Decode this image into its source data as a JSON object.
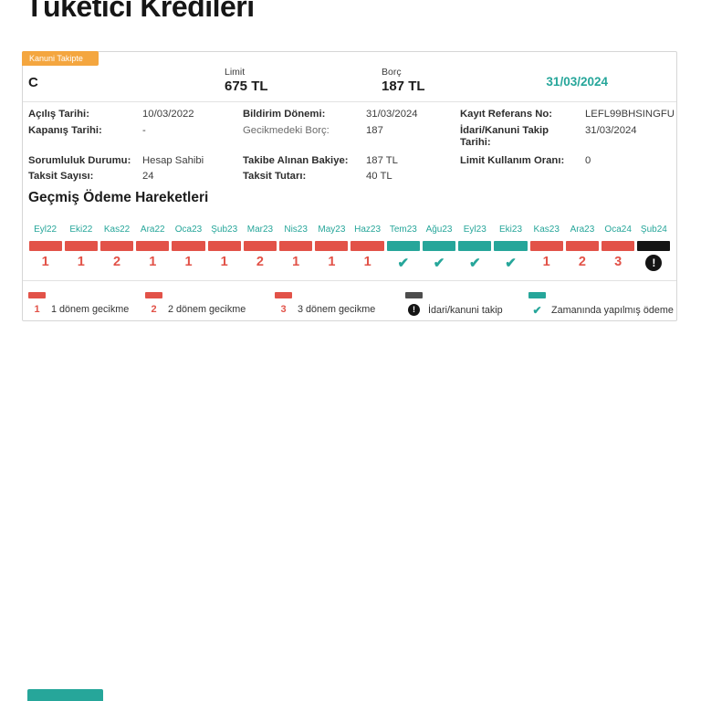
{
  "page": {
    "title": "Tüketici Kredileri"
  },
  "colors": {
    "teal": "#26a69a",
    "red": "#e25248",
    "orange": "#f4a63f",
    "black": "#141414",
    "legend_gray": "#4d4d4d"
  },
  "card": {
    "status_badge": "Kanuni Takipte",
    "account_name": "C",
    "limit_label": "Limit",
    "limit_value": "675 TL",
    "debt_label": "Borç",
    "debt_value": "187 TL",
    "report_date": "31/03/2024"
  },
  "info": {
    "rows": [
      {
        "c1l": "Açılış Tarihi:",
        "c1v": "10/03/2022",
        "c2l": "Bildirim Dönemi:",
        "c2v": "31/03/2024",
        "c3l": "Kayıt Referans No:",
        "c3v": "LEFL99BHSINGFU"
      },
      {
        "c1l": "Kapanış Tarihi:",
        "c1v": "-",
        "c2l": "Gecikmedeki Borç:",
        "c2v": "187",
        "c3l": "İdari/Kanuni Takip Tarihi:",
        "c3v": "31/03/2024"
      },
      {
        "c1l": "Sorumluluk Durumu:",
        "c1v": "Hesap Sahibi",
        "c2l": "Takibe Alınan Bakiye:",
        "c2v": "187 TL",
        "c3l": "Limit Kullanım Oranı:",
        "c3v": "0"
      },
      {
        "c1l": "Taksit Sayısı:",
        "c1v": "24",
        "c2l": "Taksit Tutarı:",
        "c2v": "40 TL",
        "c3l": "",
        "c3v": ""
      }
    ]
  },
  "payment_history": {
    "title": "Geçmiş Ödeme Hareketleri",
    "months": [
      {
        "label": "Eyl22",
        "status": "delay",
        "value": "1"
      },
      {
        "label": "Eki22",
        "status": "delay",
        "value": "1"
      },
      {
        "label": "Kas22",
        "status": "delay",
        "value": "2"
      },
      {
        "label": "Ara22",
        "status": "delay",
        "value": "1"
      },
      {
        "label": "Oca23",
        "status": "delay",
        "value": "1"
      },
      {
        "label": "Şub23",
        "status": "delay",
        "value": "1"
      },
      {
        "label": "Mar23",
        "status": "delay",
        "value": "2"
      },
      {
        "label": "Nis23",
        "status": "delay",
        "value": "1"
      },
      {
        "label": "May23",
        "status": "delay",
        "value": "1"
      },
      {
        "label": "Haz23",
        "status": "delay",
        "value": "1"
      },
      {
        "label": "Tem23",
        "status": "ontime",
        "value": "✔"
      },
      {
        "label": "Ağu23",
        "status": "ontime",
        "value": "✔"
      },
      {
        "label": "Eyl23",
        "status": "ontime",
        "value": "✔"
      },
      {
        "label": "Eki23",
        "status": "ontime",
        "value": "✔"
      },
      {
        "label": "Kas23",
        "status": "delay",
        "value": "1"
      },
      {
        "label": "Ara23",
        "status": "delay",
        "value": "2"
      },
      {
        "label": "Oca24",
        "status": "delay",
        "value": "3"
      },
      {
        "label": "Şub24",
        "status": "legal",
        "value": "!"
      }
    ]
  },
  "legend": {
    "items": [
      {
        "type": "delay",
        "symbol": "1",
        "label": "1 dönem gecikme"
      },
      {
        "type": "delay",
        "symbol": "2",
        "label": "2 dönem gecikme"
      },
      {
        "type": "delay",
        "symbol": "3",
        "label": "3 dönem gecikme"
      },
      {
        "type": "legal",
        "symbol": "!",
        "label": "İdari/kanuni takip"
      },
      {
        "type": "ontime",
        "symbol": "✔",
        "label": "Zamanında yapılmış ödeme"
      }
    ]
  }
}
